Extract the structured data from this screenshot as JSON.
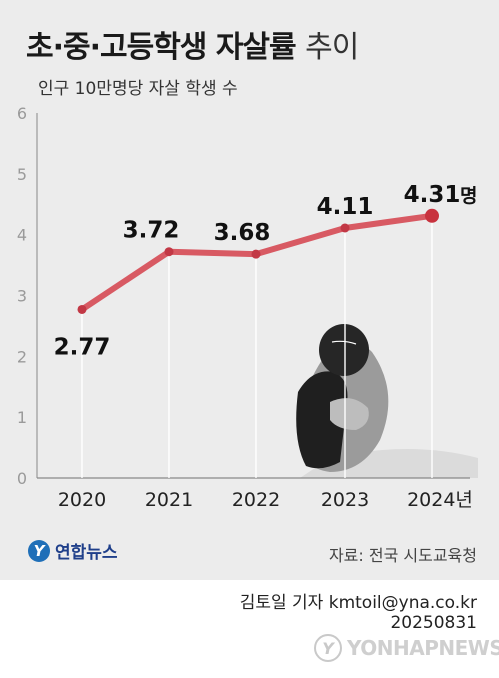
{
  "header": {
    "title_bold": "초·중·고등학생 자살률",
    "title_light": "추이",
    "subtitle": "인구 10만명당 자살 학생 수"
  },
  "chart_data": {
    "type": "line",
    "title": "초·중·고등학생 자살률 추이",
    "ylabel": "인구 10만명당 자살 학생 수",
    "categories": [
      "2020",
      "2021",
      "2022",
      "2023",
      "2024"
    ],
    "x_tick_labels": [
      "2020",
      "2021",
      "2022",
      "2023",
      "2024년"
    ],
    "values": [
      2.77,
      3.72,
      3.68,
      4.11,
      4.31
    ],
    "value_labels": [
      "2.77",
      "3.72",
      "3.68",
      "4.11",
      "4.31"
    ],
    "last_value_unit": "명",
    "ylim": [
      0,
      6
    ],
    "yticks": [
      "0",
      "1",
      "2",
      "3",
      "4",
      "5",
      "6"
    ],
    "line_color": "#d85a63",
    "last_point_color": "#c8323e",
    "grid": false
  },
  "footer": {
    "logo_text": "연합뉴스",
    "source": "자료: 전국 시도교육청",
    "credit": "김토일 기자 kmtoil@yna.co.kr",
    "date": "20250831",
    "watermark": "YONHAPNEWS"
  }
}
